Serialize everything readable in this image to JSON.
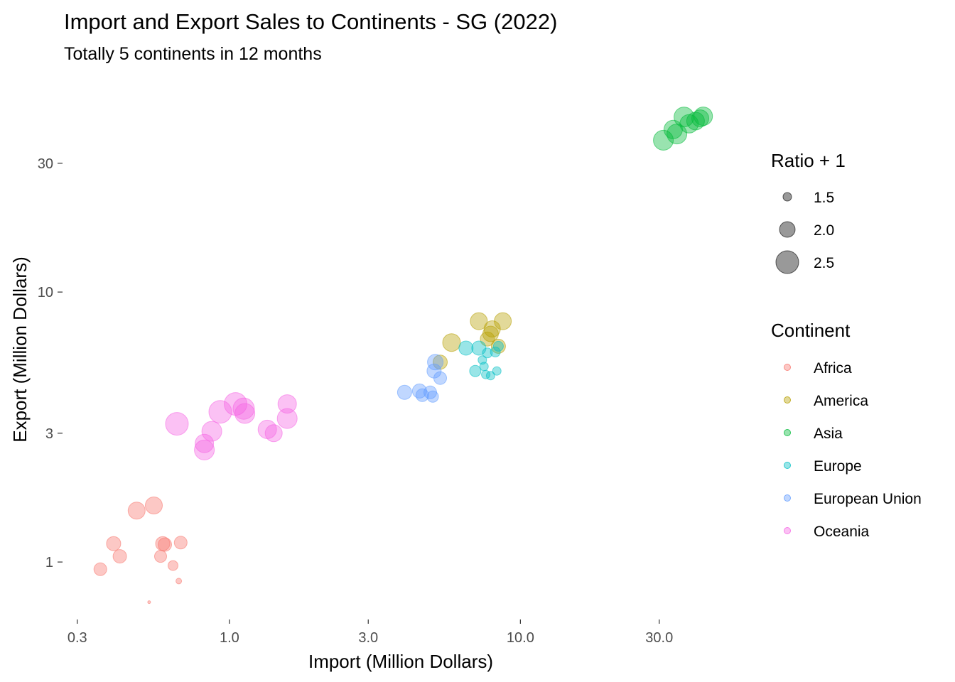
{
  "chart_data": {
    "type": "scatter",
    "title": "Import and Export Sales to Continents - SG (2022)",
    "subtitle": "Totally 5 continents in 12 months",
    "xlabel": "Import (Million Dollars)",
    "ylabel": "Export (Million Dollars)",
    "x_scale": "log10",
    "y_scale": "log10",
    "xlim": [
      0.27,
      58
    ],
    "ylim": [
      0.62,
      62
    ],
    "x_ticks": [
      {
        "value": 0.3,
        "label": "0.3"
      },
      {
        "value": 1,
        "label": "1.0"
      },
      {
        "value": 3,
        "label": "3.0"
      },
      {
        "value": 10,
        "label": "10.0"
      },
      {
        "value": 30,
        "label": "30.0"
      }
    ],
    "y_ticks": [
      {
        "value": 1,
        "label": "1"
      },
      {
        "value": 3,
        "label": "3"
      },
      {
        "value": 10,
        "label": "10"
      },
      {
        "value": 30,
        "label": "30"
      }
    ],
    "grid": false,
    "point_alpha": 0.4,
    "legend_size": {
      "title": "Ratio + 1",
      "entries": [
        {
          "value": 1.5,
          "label": "1.5"
        },
        {
          "value": 2.0,
          "label": "2.0"
        },
        {
          "value": 2.5,
          "label": "2.5"
        }
      ]
    },
    "legend_color": {
      "title": "Continent",
      "entries": [
        {
          "label": "Africa",
          "color": "#F8766D"
        },
        {
          "label": "America",
          "color": "#B79F00"
        },
        {
          "label": "Asia",
          "color": "#00BA38"
        },
        {
          "label": "Europe",
          "color": "#00BFC4"
        },
        {
          "label": "European Union",
          "color": "#619CFF"
        },
        {
          "label": "Oceania",
          "color": "#F564E3"
        }
      ]
    },
    "series": [
      {
        "name": "Africa",
        "color": "#F8766D",
        "points": [
          {
            "x": 0.36,
            "y": 0.94,
            "size": 1.8
          },
          {
            "x": 0.4,
            "y": 1.17,
            "size": 1.9
          },
          {
            "x": 0.42,
            "y": 1.05,
            "size": 1.85
          },
          {
            "x": 0.48,
            "y": 1.55,
            "size": 2.1
          },
          {
            "x": 0.53,
            "y": 0.71,
            "size": 1.1
          },
          {
            "x": 0.55,
            "y": 1.62,
            "size": 2.1
          },
          {
            "x": 0.58,
            "y": 1.05,
            "size": 1.75
          },
          {
            "x": 0.59,
            "y": 1.17,
            "size": 1.9
          },
          {
            "x": 0.6,
            "y": 1.16,
            "size": 1.85
          },
          {
            "x": 0.64,
            "y": 0.97,
            "size": 1.6
          },
          {
            "x": 0.67,
            "y": 0.85,
            "size": 1.3
          },
          {
            "x": 0.68,
            "y": 1.18,
            "size": 1.8
          }
        ]
      },
      {
        "name": "America",
        "color": "#B79F00",
        "points": [
          {
            "x": 5.3,
            "y": 5.5,
            "size": 1.9
          },
          {
            "x": 5.8,
            "y": 6.5,
            "size": 2.15
          },
          {
            "x": 7.2,
            "y": 7.8,
            "size": 2.1
          },
          {
            "x": 7.7,
            "y": 6.7,
            "size": 1.9
          },
          {
            "x": 7.9,
            "y": 7.0,
            "size": 2.0
          },
          {
            "x": 8.0,
            "y": 7.3,
            "size": 2.05
          },
          {
            "x": 8.4,
            "y": 6.3,
            "size": 1.9
          },
          {
            "x": 8.7,
            "y": 7.8,
            "size": 2.1
          }
        ]
      },
      {
        "name": "Asia",
        "color": "#00BA38",
        "points": [
          {
            "x": 31.0,
            "y": 36.5,
            "size": 2.3
          },
          {
            "x": 33.5,
            "y": 40.0,
            "size": 2.2
          },
          {
            "x": 34.5,
            "y": 38.5,
            "size": 2.3
          },
          {
            "x": 36.5,
            "y": 44.5,
            "size": 2.3
          },
          {
            "x": 38.0,
            "y": 42.0,
            "size": 2.2
          },
          {
            "x": 40.0,
            "y": 43.0,
            "size": 2.15
          },
          {
            "x": 41.5,
            "y": 44.0,
            "size": 2.1
          },
          {
            "x": 42.5,
            "y": 44.8,
            "size": 2.2
          }
        ]
      },
      {
        "name": "Europe",
        "color": "#00BFC4",
        "points": [
          {
            "x": 6.5,
            "y": 6.2,
            "size": 1.9
          },
          {
            "x": 7.0,
            "y": 5.1,
            "size": 1.7
          },
          {
            "x": 7.2,
            "y": 6.2,
            "size": 1.9
          },
          {
            "x": 7.4,
            "y": 5.6,
            "size": 1.5
          },
          {
            "x": 7.5,
            "y": 5.3,
            "size": 1.5
          },
          {
            "x": 7.6,
            "y": 4.95,
            "size": 1.5
          },
          {
            "x": 7.7,
            "y": 5.95,
            "size": 1.6
          },
          {
            "x": 7.9,
            "y": 4.9,
            "size": 1.5
          },
          {
            "x": 8.2,
            "y": 6.0,
            "size": 1.6
          },
          {
            "x": 8.3,
            "y": 5.1,
            "size": 1.5
          },
          {
            "x": 8.4,
            "y": 6.3,
            "size": 1.6
          }
        ]
      },
      {
        "name": "European Union",
        "color": "#619CFF",
        "points": [
          {
            "x": 4.0,
            "y": 4.25,
            "size": 1.9
          },
          {
            "x": 4.5,
            "y": 4.3,
            "size": 1.9
          },
          {
            "x": 4.6,
            "y": 4.15,
            "size": 1.8
          },
          {
            "x": 4.9,
            "y": 4.25,
            "size": 1.8
          },
          {
            "x": 5.0,
            "y": 4.1,
            "size": 1.7
          },
          {
            "x": 5.05,
            "y": 5.1,
            "size": 1.9
          },
          {
            "x": 5.1,
            "y": 5.5,
            "size": 2.0
          },
          {
            "x": 5.3,
            "y": 4.8,
            "size": 1.8
          }
        ]
      },
      {
        "name": "Oceania",
        "color": "#F564E3",
        "points": [
          {
            "x": 0.66,
            "y": 3.25,
            "size": 2.5
          },
          {
            "x": 0.82,
            "y": 2.6,
            "size": 2.3
          },
          {
            "x": 0.82,
            "y": 2.75,
            "size": 2.2
          },
          {
            "x": 0.87,
            "y": 3.05,
            "size": 2.3
          },
          {
            "x": 0.93,
            "y": 3.6,
            "size": 2.5
          },
          {
            "x": 1.05,
            "y": 3.85,
            "size": 2.5
          },
          {
            "x": 1.12,
            "y": 3.7,
            "size": 2.4
          },
          {
            "x": 1.13,
            "y": 3.55,
            "size": 2.3
          },
          {
            "x": 1.35,
            "y": 3.1,
            "size": 2.2
          },
          {
            "x": 1.42,
            "y": 3.0,
            "size": 2.1
          },
          {
            "x": 1.58,
            "y": 3.85,
            "size": 2.2
          },
          {
            "x": 1.58,
            "y": 3.4,
            "size": 2.3
          }
        ]
      }
    ]
  }
}
